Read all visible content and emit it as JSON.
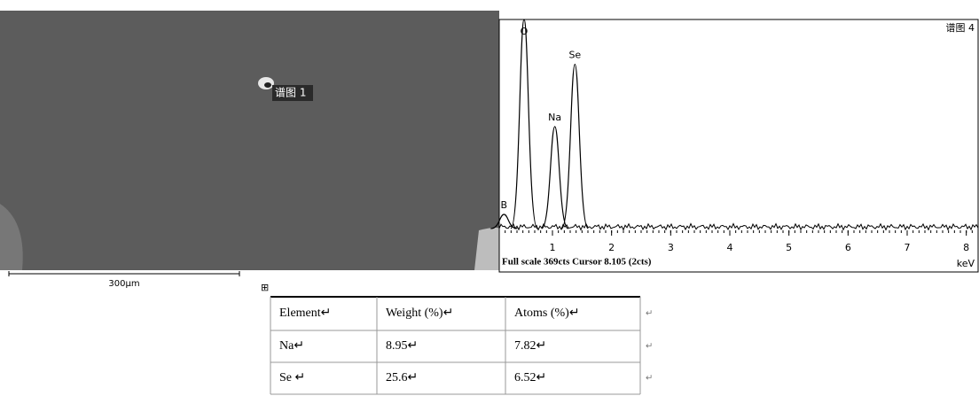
{
  "sem_image": {
    "label": "谱图 1",
    "scale_bar": "300μm"
  },
  "spectrum": {
    "title": "谱图 4",
    "footer": "Full scale 369cts Cursor 8.105 (2cts)",
    "x_label": "keV",
    "xlim": [
      0.1,
      8.2
    ],
    "ylim": [
      0,
      369
    ],
    "xticks": [
      1,
      2,
      3,
      4,
      5,
      6,
      7,
      8
    ],
    "peaks": [
      {
        "label": "B",
        "energy": 0.18,
        "counts": 25
      },
      {
        "label": "O",
        "energy": 0.52,
        "counts": 369
      },
      {
        "label": "Na",
        "energy": 1.04,
        "counts": 180
      },
      {
        "label": "Se",
        "energy": 1.38,
        "counts": 290
      }
    ]
  },
  "table": {
    "rows": [
      [
        "Element↵",
        "Weight (%)↵",
        "Atoms (%)↵",
        "↵"
      ],
      [
        "Na↵",
        "8.95↵",
        "7.82↵",
        "↵"
      ],
      [
        "Se ↵",
        "25.6↵",
        "6.52↵",
        "↵"
      ]
    ]
  }
}
